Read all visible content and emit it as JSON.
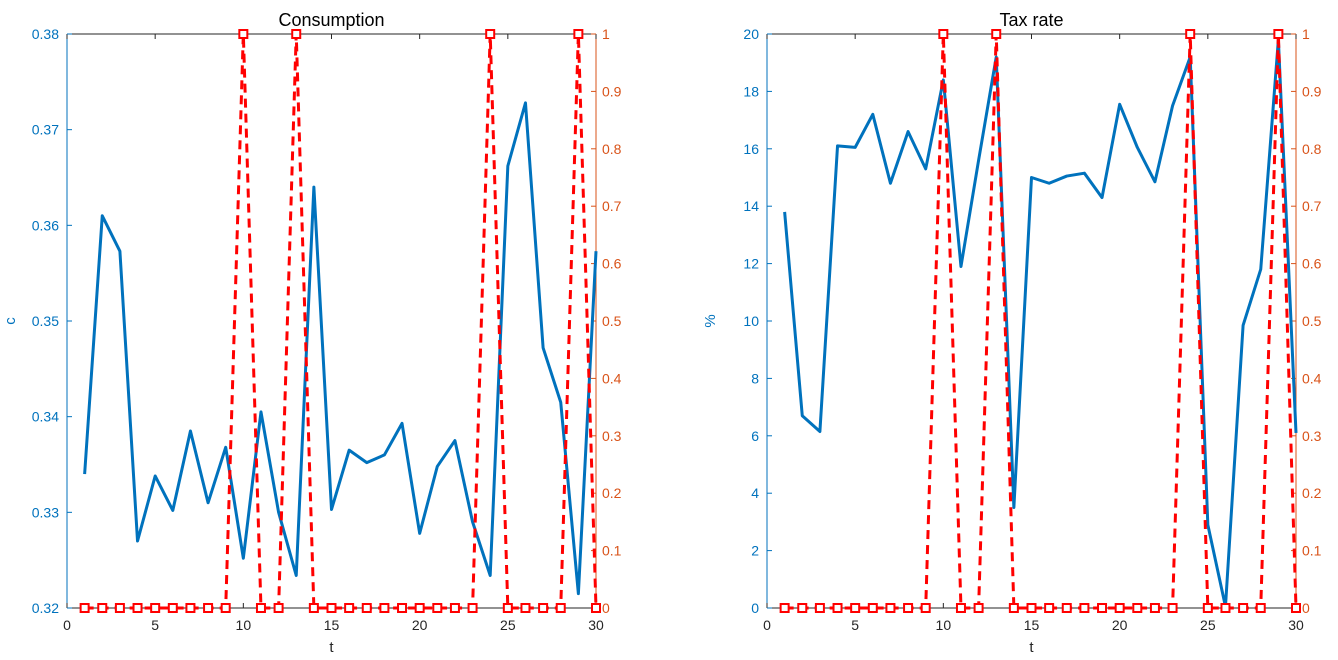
{
  "colors": {
    "series_line": "#0072BD",
    "dummy_line": "#FF0000",
    "left_axis": "#0072BD",
    "right_axis": "#D95319",
    "axis_frame": "#262626"
  },
  "chart_data": [
    {
      "type": "line",
      "title": "Consumption",
      "xlabel": "t",
      "ylabel": "c",
      "xlim": [
        0,
        30
      ],
      "ylim": [
        0.32,
        0.38
      ],
      "y2lim": [
        0,
        1
      ],
      "xticks": [
        0,
        5,
        10,
        15,
        20,
        25,
        30
      ],
      "yticks": [
        0.32,
        0.33,
        0.34,
        0.35,
        0.36,
        0.37,
        0.38
      ],
      "y2ticks": [
        0,
        0.1,
        0.2,
        0.3,
        0.4,
        0.5,
        0.6,
        0.7,
        0.8,
        0.9,
        1
      ],
      "x": [
        1,
        2,
        3,
        4,
        5,
        6,
        7,
        8,
        9,
        10,
        11,
        12,
        13,
        14,
        15,
        16,
        17,
        18,
        19,
        20,
        21,
        22,
        23,
        24,
        25,
        26,
        27,
        28,
        29,
        30
      ],
      "series": [
        {
          "axis": "left",
          "style": "solid",
          "values": [
            0.334,
            0.361,
            0.3573,
            0.327,
            0.3338,
            0.3302,
            0.3385,
            0.331,
            0.3368,
            0.3252,
            0.3405,
            0.33,
            0.3234,
            0.364,
            0.3303,
            0.3365,
            0.3352,
            0.336,
            0.3393,
            0.3278,
            0.3348,
            0.3375,
            0.329,
            0.3234,
            0.3662,
            0.3728,
            0.3472,
            0.3415,
            0.3215,
            0.3573
          ]
        },
        {
          "axis": "right",
          "style": "dashed-square-markers",
          "values": [
            0,
            0,
            0,
            0,
            0,
            0,
            0,
            0,
            0,
            1,
            0,
            0,
            1,
            0,
            0,
            0,
            0,
            0,
            0,
            0,
            0,
            0,
            0,
            1,
            0,
            0,
            0,
            0,
            1,
            0
          ]
        }
      ]
    },
    {
      "type": "line",
      "title": "Tax rate",
      "xlabel": "t",
      "ylabel": "%",
      "xlim": [
        0,
        30
      ],
      "ylim": [
        0,
        20
      ],
      "y2lim": [
        0,
        1
      ],
      "xticks": [
        0,
        5,
        10,
        15,
        20,
        25,
        30
      ],
      "yticks": [
        0,
        2,
        4,
        6,
        8,
        10,
        12,
        14,
        16,
        18,
        20
      ],
      "y2ticks": [
        0,
        0.1,
        0.2,
        0.3,
        0.4,
        0.5,
        0.6,
        0.7,
        0.8,
        0.9,
        1
      ],
      "x": [
        1,
        2,
        3,
        4,
        5,
        6,
        7,
        8,
        9,
        10,
        11,
        12,
        13,
        14,
        15,
        16,
        17,
        18,
        19,
        20,
        21,
        22,
        23,
        24,
        25,
        26,
        27,
        28,
        29,
        30
      ],
      "series": [
        {
          "axis": "left",
          "style": "solid",
          "values": [
            13.8,
            6.7,
            6.15,
            16.1,
            16.05,
            17.2,
            14.8,
            16.6,
            15.3,
            18.4,
            11.9,
            15.6,
            19.2,
            3.5,
            15.0,
            14.8,
            15.05,
            15.15,
            14.3,
            17.55,
            16.05,
            14.85,
            17.5,
            19.2,
            2.9,
            0.05,
            9.85,
            11.8,
            19.8,
            6.1
          ]
        },
        {
          "axis": "right",
          "style": "dashed-square-markers",
          "values": [
            0,
            0,
            0,
            0,
            0,
            0,
            0,
            0,
            0,
            1,
            0,
            0,
            1,
            0,
            0,
            0,
            0,
            0,
            0,
            0,
            0,
            0,
            0,
            1,
            0,
            0,
            0,
            0,
            1,
            0
          ]
        }
      ]
    }
  ]
}
